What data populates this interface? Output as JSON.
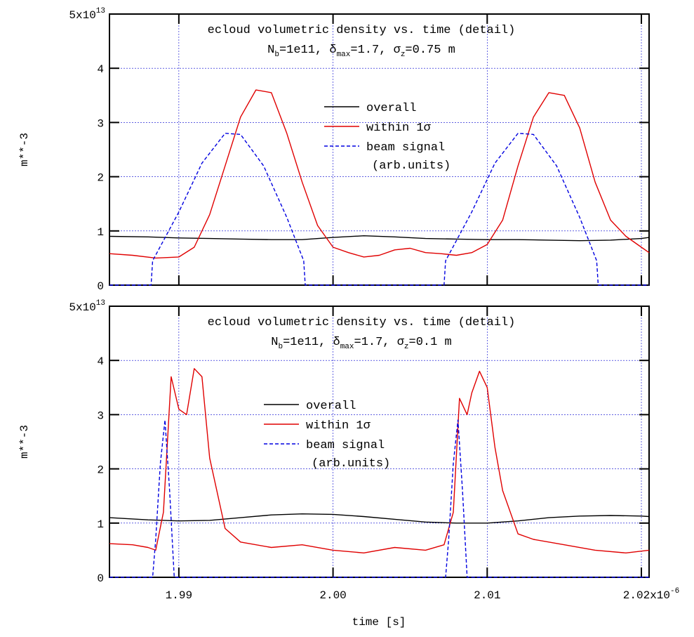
{
  "figure": {
    "xlabel": "time [s]"
  },
  "chart_data": [
    {
      "type": "line",
      "title": "ecloud volumetric density vs. time (detail)",
      "subtitle": {
        "line_a": "N",
        "sub_a": "b",
        "line_b": "=1e11, δ",
        "sub_b": "max",
        "line_c": "=1.7, σ",
        "sub_c": "z",
        "line_d": "=0.75 m"
      },
      "ylabel": "m**-3",
      "xlabel": "",
      "xlim": [
        1.9855,
        2.0205
      ],
      "ylim": [
        0,
        5
      ],
      "y_scale_label": "5x10",
      "y_scale_exp": "13",
      "x_ticks": [
        1.99,
        2.0,
        2.01,
        2.02
      ],
      "y_ticks": [
        0,
        1,
        2,
        3,
        4
      ],
      "y_tick_labels": [
        "0",
        "1",
        "2",
        "3",
        "4"
      ],
      "grid": true,
      "legend_position": "center",
      "series": [
        {
          "name": "overall",
          "color": "#000000",
          "dash": "solid",
          "x": [
            1.9855,
            1.988,
            1.99,
            1.992,
            1.994,
            1.996,
            1.998,
            2.0,
            2.002,
            2.004,
            2.006,
            2.008,
            2.01,
            2.012,
            2.014,
            2.016,
            2.018,
            2.02,
            2.0205
          ],
          "y": [
            0.9,
            0.89,
            0.87,
            0.86,
            0.85,
            0.84,
            0.84,
            0.88,
            0.91,
            0.89,
            0.86,
            0.85,
            0.84,
            0.84,
            0.83,
            0.82,
            0.83,
            0.86,
            0.88
          ]
        },
        {
          "name": "within 1σ",
          "color": "#e00000",
          "dash": "solid",
          "x": [
            1.9855,
            1.987,
            1.9885,
            1.99,
            1.991,
            1.992,
            1.993,
            1.994,
            1.995,
            1.996,
            1.997,
            1.998,
            1.999,
            2.0,
            2.001,
            2.002,
            2.003,
            2.004,
            2.005,
            2.006,
            2.007,
            2.008,
            2.009,
            2.01,
            2.011,
            2.012,
            2.013,
            2.014,
            2.015,
            2.016,
            2.017,
            2.018,
            2.019,
            2.02,
            2.0205
          ],
          "y": [
            0.58,
            0.55,
            0.5,
            0.52,
            0.7,
            1.3,
            2.2,
            3.1,
            3.6,
            3.55,
            2.8,
            1.9,
            1.1,
            0.7,
            0.6,
            0.52,
            0.55,
            0.65,
            0.68,
            0.6,
            0.58,
            0.55,
            0.6,
            0.75,
            1.2,
            2.2,
            3.1,
            3.55,
            3.5,
            2.9,
            1.9,
            1.2,
            0.9,
            0.7,
            0.6
          ]
        },
        {
          "name": "beam signal\n(arb.units)",
          "color": "#0000e0",
          "dash": "dashed",
          "x": [
            1.9855,
            1.9882,
            1.9883,
            1.99,
            1.9915,
            1.993,
            1.994,
            1.9955,
            1.997,
            1.9981,
            1.9982,
            2.0072,
            2.0073,
            2.009,
            2.0105,
            2.012,
            2.013,
            2.0145,
            2.016,
            2.0171,
            2.0172,
            2.0205
          ],
          "y": [
            0,
            0,
            0.45,
            1.35,
            2.25,
            2.8,
            2.78,
            2.2,
            1.25,
            0.45,
            0,
            0,
            0.45,
            1.35,
            2.25,
            2.8,
            2.78,
            2.2,
            1.25,
            0.45,
            0,
            0
          ]
        }
      ]
    },
    {
      "type": "line",
      "title": "ecloud volumetric density vs. time (detail)",
      "subtitle": {
        "line_a": "N",
        "sub_a": "b",
        "line_b": "=1e11, δ",
        "sub_b": "max",
        "line_c": "=1.7, σ",
        "sub_c": "z",
        "line_d": "=0.1 m"
      },
      "ylabel": "m**-3",
      "xlabel": "time [s]",
      "xlim": [
        1.9855,
        2.0205
      ],
      "ylim": [
        0,
        5
      ],
      "y_scale_label": "5x10",
      "y_scale_exp": "13",
      "x_ticks": [
        1.99,
        2.0,
        2.01,
        2.02
      ],
      "x_tick_labels": [
        "1.99",
        "2.00",
        "2.01",
        "2.02x10"
      ],
      "x_scale_exp": "-6",
      "y_ticks": [
        0,
        1,
        2,
        3,
        4
      ],
      "y_tick_labels": [
        "0",
        "1",
        "2",
        "3",
        "4"
      ],
      "grid": true,
      "legend_position": "center",
      "series": [
        {
          "name": "overall",
          "color": "#000000",
          "dash": "solid",
          "x": [
            1.9855,
            1.988,
            1.99,
            1.992,
            1.994,
            1.996,
            1.998,
            2.0,
            2.002,
            2.004,
            2.006,
            2.008,
            2.01,
            2.012,
            2.014,
            2.016,
            2.018,
            2.02,
            2.0205
          ],
          "y": [
            1.1,
            1.06,
            1.04,
            1.05,
            1.1,
            1.15,
            1.17,
            1.16,
            1.12,
            1.07,
            1.02,
            1.0,
            1.0,
            1.04,
            1.1,
            1.13,
            1.14,
            1.13,
            1.12
          ]
        },
        {
          "name": "within 1σ",
          "color": "#e00000",
          "dash": "solid",
          "x": [
            1.9855,
            1.987,
            1.988,
            1.9885,
            1.989,
            1.9895,
            1.99,
            1.9905,
            1.991,
            1.9915,
            1.992,
            1.993,
            1.994,
            1.996,
            1.998,
            2.0,
            2.002,
            2.004,
            2.006,
            2.0072,
            2.0078,
            2.0082,
            2.0087,
            2.009,
            2.0095,
            2.01,
            2.0105,
            2.011,
            2.012,
            2.013,
            2.015,
            2.017,
            2.019,
            2.0205
          ],
          "y": [
            0.62,
            0.6,
            0.55,
            0.5,
            1.2,
            3.7,
            3.1,
            3.0,
            3.85,
            3.7,
            2.2,
            0.9,
            0.65,
            0.55,
            0.6,
            0.5,
            0.45,
            0.55,
            0.5,
            0.6,
            1.2,
            3.3,
            3.0,
            3.4,
            3.8,
            3.5,
            2.4,
            1.6,
            0.8,
            0.7,
            0.6,
            0.5,
            0.45,
            0.5
          ]
        },
        {
          "name": "beam signal\n(arb.units)",
          "color": "#0000e0",
          "dash": "dashed",
          "x": [
            1.9855,
            1.9883,
            1.9885,
            1.9888,
            1.9891,
            1.9894,
            1.9897,
            2.0073,
            2.0075,
            2.0078,
            2.0081,
            2.0084,
            2.0087,
            2.0205
          ],
          "y": [
            0,
            0,
            0.7,
            2.1,
            2.9,
            1.6,
            0,
            0,
            0.7,
            2.1,
            2.9,
            1.6,
            0,
            0
          ]
        }
      ]
    }
  ]
}
